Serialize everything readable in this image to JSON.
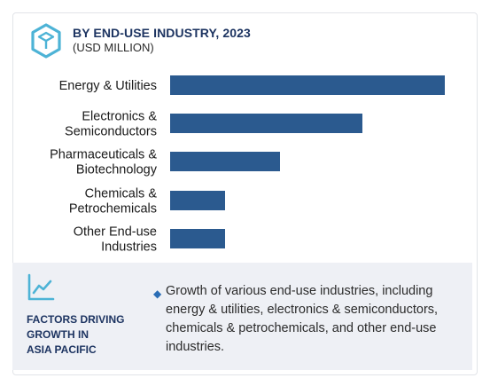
{
  "header": {
    "title": "BY END-USE INDUSTRY, 2023",
    "subtitle": "(USD MILLION)",
    "icon": "cube-hexagon-icon"
  },
  "chart_data": {
    "type": "bar",
    "orientation": "horizontal",
    "title": "BY END-USE INDUSTRY, 2023",
    "subtitle": "(USD MILLION)",
    "categories": [
      [
        "Energy & Utilities"
      ],
      [
        "Electronics &",
        "Semiconductors"
      ],
      [
        "Pharmaceuticals &",
        "Biotechnology"
      ],
      [
        "Chemicals &",
        "Petrochemicals"
      ],
      [
        "Other End-use",
        "Industries"
      ]
    ],
    "values": [
      100,
      70,
      40,
      20,
      20
    ],
    "xlim": [
      0,
      100
    ],
    "grid": false,
    "legend": "none",
    "bar_color": "#2b5a8f"
  },
  "factors_panel": {
    "icon": "trend-line-icon",
    "heading_lines": [
      "FACTORS DRIVING",
      "GROWTH IN",
      "ASIA PACIFIC"
    ],
    "bullet": "◆",
    "text": "Growth of various end-use industries, including energy & utilities, electronics & semiconductors, chemicals & petrochemicals, and other end-use industries."
  },
  "colors": {
    "accent": "#2b5a8f",
    "title": "#1d3461",
    "icon": "#4db3d6",
    "panel_bg": "#eef0f5"
  }
}
